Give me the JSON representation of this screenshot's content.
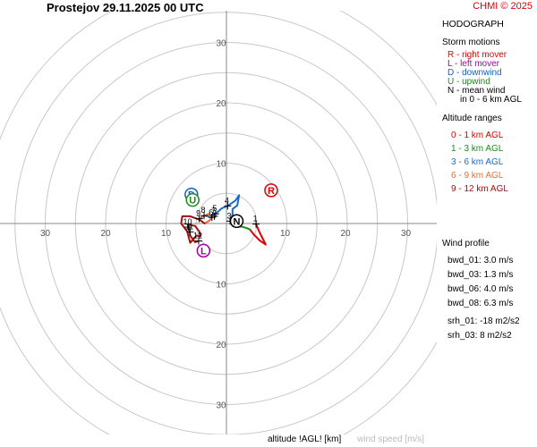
{
  "header": {
    "title": "Prostejov    29.11.2025 00 UTC",
    "copyright": "CHMI © 2025"
  },
  "legend": {
    "hodograph_title": "HODOGRAPH",
    "storm_motions_title": "Storm motions",
    "storm_motions": [
      {
        "text": "R - right mover",
        "color": "#e00000"
      },
      {
        "text": "L - left mover",
        "color": "#a000a0"
      },
      {
        "text": "D - downwind",
        "color": "#1060c0"
      },
      {
        "text": "U - upwind",
        "color": "#1a8a1a"
      },
      {
        "text": "N - mean wind",
        "color": "#000000"
      },
      {
        "text": "in 0 - 6 km AGL",
        "color": "#000000"
      }
    ],
    "altitude_title": "Altitude ranges",
    "altitude_ranges": [
      {
        "text": "0 - 1 km AGL",
        "color": "#e00000"
      },
      {
        "text": "1 - 3 km AGL",
        "color": "#1a8a1a"
      },
      {
        "text": "3 - 6 km AGL",
        "color": "#1a6ad0"
      },
      {
        "text": "6 - 9 km AGL",
        "color": "#e0703a"
      },
      {
        "text": "9 - 12 km AGL",
        "color": "#a01010"
      }
    ],
    "wind_profile_title": "Wind profile",
    "wind_profile": [
      "bwd_01: 3.0 m/s",
      "bwd_03: 1.3 m/s",
      "bwd_06: 4.0 m/s",
      "bwd_08: 6.3 m/s",
      "srh_01: -18 m2/s2",
      "srh_03: 8 m2/s2"
    ]
  },
  "footer": {
    "altitude_label": "altitude !AGL! [km]",
    "wind_speed_label": "wind speed [m/s]"
  },
  "colors": {
    "ring": "#c8c8c8",
    "axis": "#888888",
    "red": "#e00000",
    "green": "#1a8a1a",
    "blue": "#1a6ad0",
    "orange": "#e0703a",
    "darkred": "#a01010",
    "purple": "#a000a0"
  },
  "chart_data": {
    "type": "hodograph",
    "ring_speeds": [
      5,
      10,
      15,
      20,
      25,
      30,
      35,
      40
    ],
    "tick_labels": {
      "right": [
        "10",
        "20",
        "30"
      ],
      "left": [
        "10",
        "20",
        "30"
      ],
      "up": [
        "10",
        "20",
        "30"
      ],
      "down": [
        "10",
        "20",
        "30"
      ]
    },
    "units": "m/s",
    "segments": [
      {
        "range": "0 - 1 km AGL",
        "color": "#e00000",
        "points": [
          [
            4.9,
            -0.1
          ],
          [
            5.5,
            -1.5
          ],
          [
            6.5,
            -3.5
          ],
          [
            5.5,
            -2.8
          ],
          [
            4.5,
            -1.8
          ],
          [
            3.9,
            -1.0
          ]
        ]
      },
      {
        "range": "1 - 3 km AGL",
        "color": "#1a8a1a",
        "points": [
          [
            3.9,
            -1.0
          ],
          [
            3.5,
            -0.8
          ],
          [
            2.5,
            -0.5
          ],
          [
            1.6,
            -0.6
          ],
          [
            1.0,
            -0.4
          ],
          [
            0.6,
            0.4
          ]
        ]
      },
      {
        "range": "3 - 6 km AGL",
        "color": "#1a6ad0",
        "points": [
          [
            0.6,
            0.4
          ],
          [
            1.0,
            1.5
          ],
          [
            1.0,
            2.4
          ],
          [
            1.8,
            3.0
          ],
          [
            2.1,
            4.7
          ],
          [
            1.5,
            3.8
          ],
          [
            0.2,
            2.9
          ],
          [
            -0.8,
            2.5
          ],
          [
            -1.8,
            1.6
          ],
          [
            -3.0,
            1.2
          ],
          [
            -3.7,
            1.3
          ]
        ]
      },
      {
        "range": "6 - 9 km AGL",
        "color": "#e0703a",
        "points": [
          [
            -3.7,
            1.3
          ],
          [
            -4.5,
            0.8
          ],
          [
            -3.0,
            1.6
          ],
          [
            -2.4,
            1.0
          ],
          [
            -2.8,
            0.5
          ],
          [
            -3.6,
            0.0
          ]
        ]
      },
      {
        "range": "9 - 12 km AGL",
        "color": "#a01010",
        "points": [
          [
            -3.6,
            0.0
          ],
          [
            -4.4,
            0.6
          ],
          [
            -6.0,
            1.2
          ],
          [
            -7.3,
            1.2
          ],
          [
            -7.5,
            0.0
          ],
          [
            -6.5,
            -1.3
          ],
          [
            -6.0,
            -3.2
          ],
          [
            -5.0,
            -2.0
          ],
          [
            -4.3,
            -2.1
          ],
          [
            -4.5,
            -1.3
          ],
          [
            -5.2,
            -0.4
          ],
          [
            -6.3,
            -0.2
          ],
          [
            -6.0,
            -2.0
          ],
          [
            -5.2,
            -3.1
          ],
          [
            -4.6,
            -2.9
          ]
        ]
      }
    ],
    "height_labels": [
      {
        "text": "1",
        "u": 4.9,
        "v": -0.1
      },
      {
        "text": "3",
        "u": 0.6,
        "v": 0.4
      },
      {
        "text": "4",
        "u": 0.2,
        "v": 2.9
      },
      {
        "text": "5",
        "u": -1.8,
        "v": 1.6
      },
      {
        "text": "6",
        "u": -2.4,
        "v": 1.0
      },
      {
        "text": "7",
        "u": -2.0,
        "v": 1.2
      },
      {
        "text": "8",
        "u": -3.7,
        "v": 1.3
      },
      {
        "text": "9",
        "u": -4.5,
        "v": 0.8
      },
      {
        "text": "10",
        "u": -6.3,
        "v": -0.6
      },
      {
        "text": "11",
        "u": -6.0,
        "v": -1.4
      },
      {
        "text": "12",
        "u": -4.6,
        "v": -2.9
      }
    ],
    "storm_motion_markers": [
      {
        "letter": "R",
        "u": 7.4,
        "v": 5.5,
        "color": "#e00000"
      },
      {
        "letter": "L",
        "u": -3.8,
        "v": -4.5,
        "color": "#a000a0"
      },
      {
        "letter": "D",
        "u": -5.8,
        "v": 4.8,
        "color": "#1060c0"
      },
      {
        "letter": "U",
        "u": -5.6,
        "v": 3.9,
        "color": "#1a8a1a"
      },
      {
        "letter": "N",
        "u": 1.7,
        "v": 0.4,
        "color": "#000000"
      }
    ]
  }
}
